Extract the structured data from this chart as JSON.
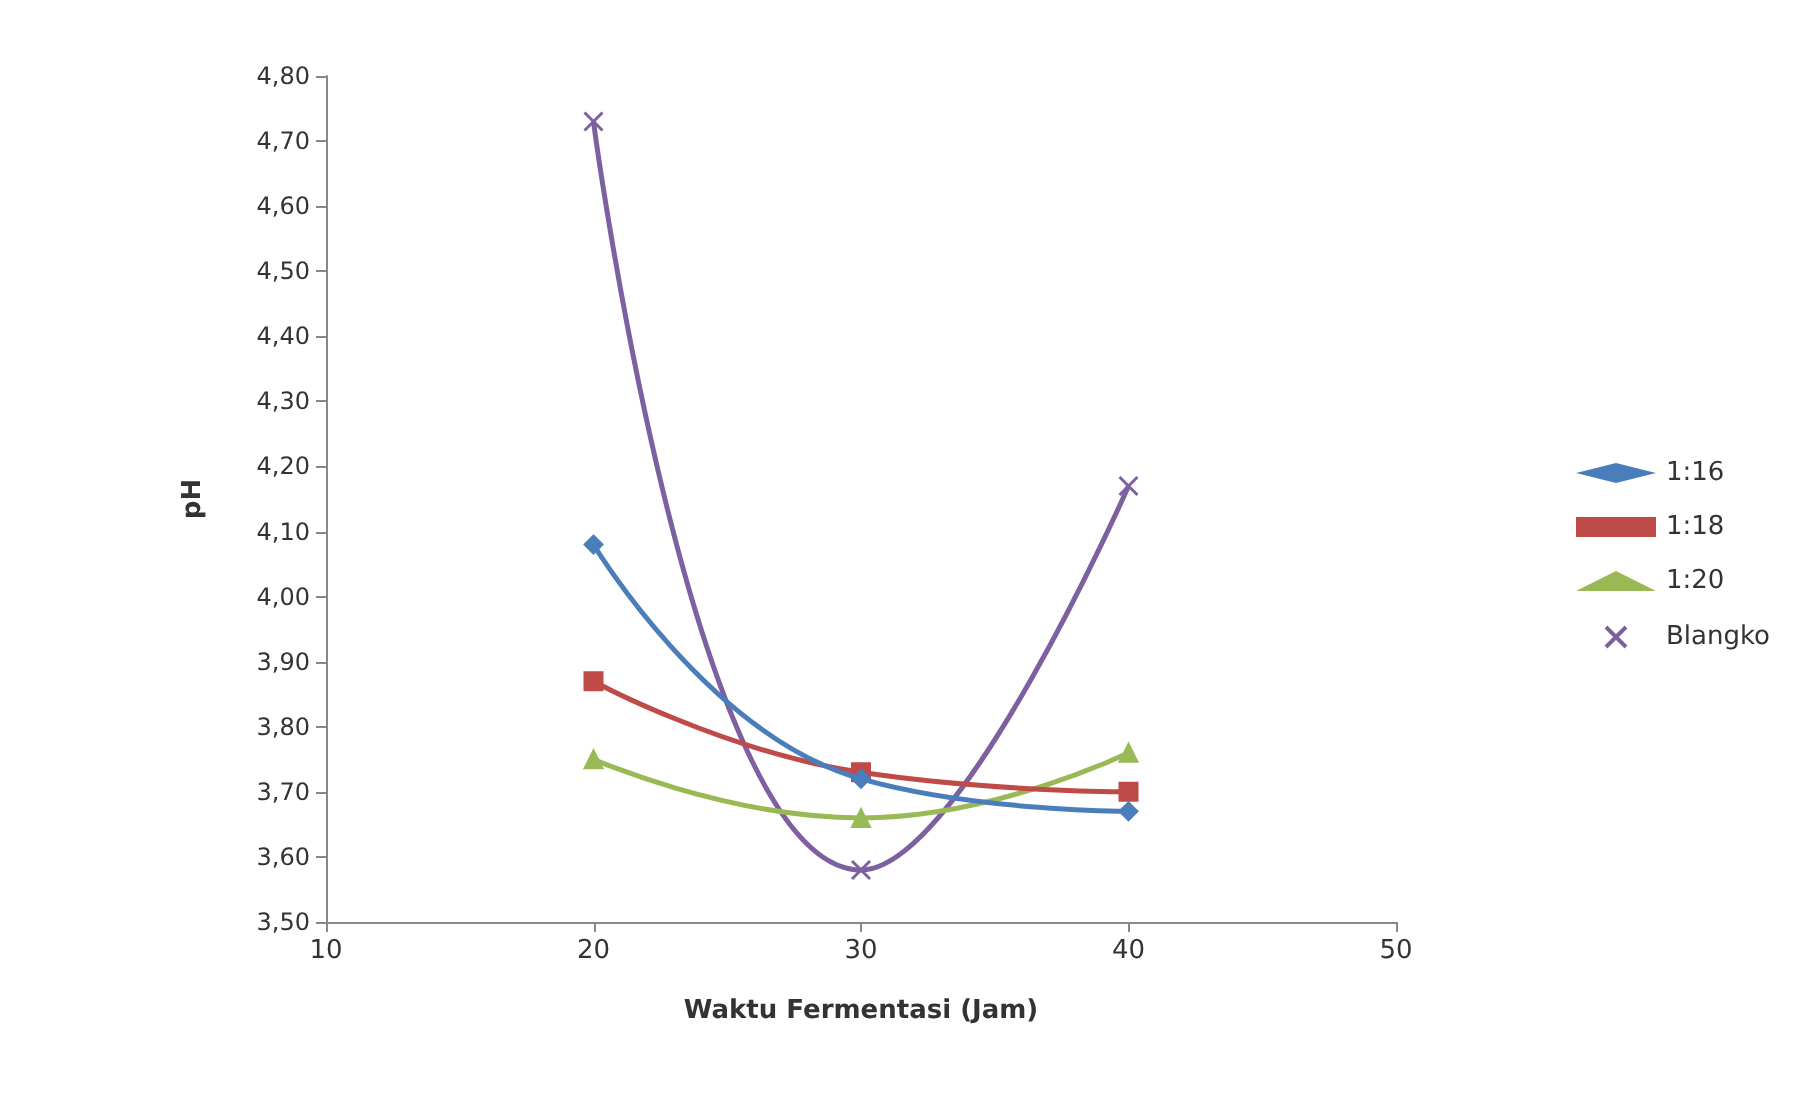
{
  "chart_data": {
    "type": "line",
    "xlabel": "Waktu Fermentasi (Jam)",
    "ylabel": "pH",
    "x": [
      20,
      30,
      40
    ],
    "series": [
      {
        "name": "1:16",
        "color": "#4a7ebb",
        "values": [
          4.08,
          3.72,
          3.67
        ],
        "marker": "diamond"
      },
      {
        "name": "1:18",
        "color": "#be4b48",
        "values": [
          3.87,
          3.73,
          3.7
        ],
        "marker": "square"
      },
      {
        "name": "1:20",
        "color": "#98b954",
        "values": [
          3.75,
          3.66,
          3.76
        ],
        "marker": "triangle"
      },
      {
        "name": "Blangko",
        "color": "#7d60a0",
        "values": [
          4.73,
          3.58,
          4.17
        ],
        "marker": "cross"
      }
    ],
    "xlim": [
      10,
      50
    ],
    "xticks": [
      10,
      20,
      30,
      40,
      50
    ],
    "ylim": [
      3.5,
      4.8
    ],
    "yticks": [
      {
        "value": 3.5,
        "label": "3,50"
      },
      {
        "value": 3.6,
        "label": "3,60"
      },
      {
        "value": 3.7,
        "label": "3,70"
      },
      {
        "value": 3.8,
        "label": "3,80"
      },
      {
        "value": 3.9,
        "label": "3,90"
      },
      {
        "value": 4.0,
        "label": "4,00"
      },
      {
        "value": 4.1,
        "label": "4,10"
      },
      {
        "value": 4.2,
        "label": "4,20"
      },
      {
        "value": 4.3,
        "label": "4,30"
      },
      {
        "value": 4.4,
        "label": "4,40"
      },
      {
        "value": 4.5,
        "label": "4,50"
      },
      {
        "value": 4.6,
        "label": "4,60"
      },
      {
        "value": 4.7,
        "label": "4,70"
      },
      {
        "value": 4.8,
        "label": "4,80"
      }
    ],
    "grid": false,
    "legend": "right",
    "line_style": "solid"
  }
}
